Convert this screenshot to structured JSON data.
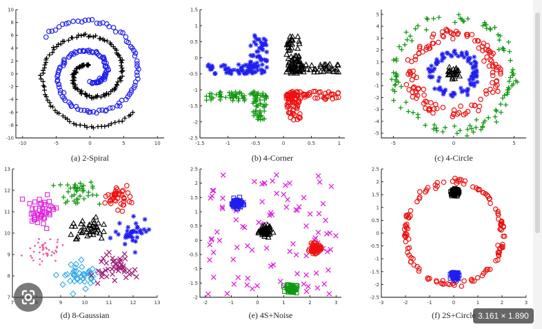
{
  "colors": {
    "black": "#000000",
    "blue": "#1f1ff0",
    "red": "#ee1111",
    "green": "#119911",
    "magenta": "#e020e0",
    "pink": "#f060a0",
    "cyan": "#30a8e8",
    "purple": "#a0207a"
  },
  "overlay": {
    "lens_icon": "google-lens-icon",
    "size_badge": "3.161 × 1.890"
  },
  "chart_data": [
    {
      "id": "spiral",
      "type": "scatter",
      "caption": "(a) 2-Spiral",
      "xlim": [
        -11,
        11
      ],
      "ylim": [
        -10,
        10
      ],
      "xticks": [
        -10,
        -5,
        0,
        5,
        10
      ],
      "yticks": [
        10,
        8,
        6,
        4,
        2,
        0,
        -2,
        -4,
        -6,
        -8,
        -10
      ],
      "series": [
        {
          "marker": "plus",
          "color": "black",
          "gen": "spiral",
          "params": {
            "a0": 0.2,
            "sign": 1,
            "n": 160
          }
        },
        {
          "marker": "circle",
          "color": "blue",
          "gen": "spiral",
          "params": {
            "a0": 0.2,
            "sign": -1,
            "n": 150
          }
        }
      ]
    },
    {
      "id": "corner",
      "type": "scatter",
      "caption": "(b) 4-Corner",
      "xlim": [
        -1.5,
        1.1
      ],
      "ylim": [
        -2.5,
        1.5
      ],
      "xticks": [
        -1.5,
        -1,
        -0.5,
        0,
        0.5,
        1
      ],
      "yticks": [
        1.5,
        1,
        0.5,
        0,
        -0.5,
        -1,
        -1.5,
        -2,
        -2.5
      ],
      "series": [
        {
          "marker": "asterisk",
          "color": "blue",
          "gen": "rects",
          "params": {
            "n": 110,
            "rects": [
              [
                -1.4,
                -0.2,
                -0.45,
                -0.5
              ],
              [
                -0.6,
                0.7,
                -0.3,
                -0.5
              ]
            ]
          }
        },
        {
          "marker": "triangle",
          "color": "black",
          "gen": "rects",
          "params": {
            "n": 110,
            "rects": [
              [
                0.05,
                0.7,
                0.3,
                -0.5
              ],
              [
                0.05,
                -0.2,
                1.0,
                -0.45
              ]
            ]
          }
        },
        {
          "marker": "plus",
          "color": "green",
          "gen": "rects",
          "params": {
            "n": 110,
            "rects": [
              [
                -1.4,
                -1.05,
                -0.45,
                -1.35
              ],
              [
                -0.55,
                -1.05,
                -0.3,
                -1.95
              ]
            ]
          }
        },
        {
          "marker": "circle",
          "color": "red",
          "gen": "rects",
          "params": {
            "n": 110,
            "rects": [
              [
                0.05,
                -1.05,
                0.3,
                -1.95
              ],
              [
                0.05,
                -1.05,
                1.0,
                -1.3
              ]
            ]
          }
        }
      ]
    },
    {
      "id": "circle4",
      "type": "scatter",
      "caption": "(c) 4-Circle",
      "xlim": [
        -6,
        6
      ],
      "ylim": [
        -5.4,
        5.4
      ],
      "xticks": [
        -5,
        0,
        5
      ],
      "yticks": [
        5,
        4,
        3,
        2,
        1,
        0,
        -1,
        -2,
        -3,
        -4,
        -5
      ],
      "series": [
        {
          "marker": "plus",
          "color": "green",
          "gen": "ring",
          "params": {
            "cx": 0,
            "cy": 0,
            "r": 4.8,
            "ry": 4.75,
            "noise": 0.25,
            "n": 110
          }
        },
        {
          "marker": "circle",
          "color": "red",
          "gen": "ring",
          "params": {
            "cx": 0,
            "cy": 0,
            "r": 3.5,
            "ry": 3.3,
            "noise": 0.3,
            "n": 130
          }
        },
        {
          "marker": "asterisk",
          "color": "blue",
          "gen": "ring",
          "params": {
            "cx": 0,
            "cy": 0,
            "r": 1.8,
            "ry": 1.7,
            "noise": 0.2,
            "n": 90
          }
        },
        {
          "marker": "triangle",
          "color": "black",
          "gen": "blob",
          "params": {
            "cx": 0,
            "cy": 0,
            "sx": 0.25,
            "sy": 0.25,
            "n": 25
          }
        }
      ]
    },
    {
      "id": "gauss8",
      "type": "scatter",
      "caption": "(d) 8-Gaussian",
      "xlim": [
        7,
        13
      ],
      "ylim": [
        7,
        13
      ],
      "xticks": [
        7,
        8,
        9,
        10,
        11,
        12,
        13
      ],
      "yticks": [
        13,
        12,
        11,
        10,
        9,
        8,
        7
      ],
      "series": [
        {
          "marker": "plus",
          "color": "green",
          "gen": "blob",
          "params": {
            "cx": 9.7,
            "cy": 11.9,
            "sx": 0.45,
            "sy": 0.25,
            "n": 40
          }
        },
        {
          "marker": "circle",
          "color": "red",
          "gen": "blob",
          "params": {
            "cx": 11.3,
            "cy": 11.7,
            "sx": 0.3,
            "sy": 0.3,
            "n": 40
          }
        },
        {
          "marker": "square",
          "color": "magenta",
          "gen": "blob",
          "params": {
            "cx": 8.2,
            "cy": 11.0,
            "sx": 0.3,
            "sy": 0.35,
            "n": 45
          }
        },
        {
          "marker": "triangle",
          "color": "black",
          "gen": "blob",
          "params": {
            "cx": 10.2,
            "cy": 10.2,
            "sx": 0.35,
            "sy": 0.25,
            "n": 40
          }
        },
        {
          "marker": "asterisk",
          "color": "blue",
          "gen": "blob",
          "params": {
            "cx": 12.0,
            "cy": 10.0,
            "sx": 0.3,
            "sy": 0.3,
            "n": 40
          }
        },
        {
          "marker": "dot",
          "color": "pink",
          "gen": "blob",
          "params": {
            "cx": 8.3,
            "cy": 9.2,
            "sx": 0.35,
            "sy": 0.3,
            "n": 45
          }
        },
        {
          "marker": "diamond",
          "color": "cyan",
          "gen": "blob",
          "params": {
            "cx": 9.8,
            "cy": 8.1,
            "sx": 0.35,
            "sy": 0.25,
            "n": 40
          }
        },
        {
          "marker": "cross",
          "color": "purple",
          "gen": "blob",
          "params": {
            "cx": 11.3,
            "cy": 8.4,
            "sx": 0.35,
            "sy": 0.35,
            "n": 45
          }
        }
      ]
    },
    {
      "id": "s4noise",
      "type": "scatter",
      "caption": "(e) 4S+Noise",
      "xlim": [
        -2.2,
        3.2
      ],
      "ylim": [
        -2.0,
        2.5
      ],
      "xticks": [
        -2,
        -1,
        0,
        1,
        2,
        3
      ],
      "yticks": [
        2.5,
        2,
        1.5,
        1,
        0.5,
        0,
        -0.5,
        -1,
        -1.5,
        -2
      ],
      "series": [
        {
          "marker": "cross",
          "color": "magenta",
          "gen": "uniform",
          "params": {
            "x0": -2.0,
            "x1": 3.0,
            "y0": -1.9,
            "y1": 2.3,
            "n": 95
          }
        },
        {
          "marker": "square",
          "color": "blue",
          "gen": "blob",
          "params": {
            "cx": -0.8,
            "cy": 1.3,
            "sx": 0.1,
            "sy": 0.08,
            "n": 70
          }
        },
        {
          "marker": "triangle",
          "color": "black",
          "gen": "blob",
          "params": {
            "cx": 0.3,
            "cy": 0.3,
            "sx": 0.1,
            "sy": 0.08,
            "n": 70
          }
        },
        {
          "marker": "circle",
          "color": "red",
          "gen": "blob",
          "params": {
            "cx": 2.2,
            "cy": -0.3,
            "sx": 0.1,
            "sy": 0.08,
            "n": 70
          }
        },
        {
          "marker": "square",
          "color": "green",
          "gen": "blob",
          "params": {
            "cx": 1.3,
            "cy": -1.7,
            "sx": 0.1,
            "sy": 0.08,
            "n": 70
          }
        }
      ]
    },
    {
      "id": "s2circle",
      "type": "scatter",
      "caption": "(f) 2S+Circle",
      "xlim": [
        -3,
        3
      ],
      "ylim": [
        -2.5,
        2.5
      ],
      "xticks": [
        -3,
        -2,
        -1,
        0,
        1,
        2,
        3
      ],
      "yticks": [
        2.5,
        2,
        1.5,
        1,
        0.5,
        0,
        -0.5,
        -1,
        -1.5,
        -2,
        -2.5
      ],
      "series": [
        {
          "marker": "circle",
          "color": "red",
          "gen": "ring",
          "params": {
            "cx": 0,
            "cy": 0,
            "r": 2.0,
            "ry": 2.0,
            "noise": 0.05,
            "n": 130
          }
        },
        {
          "marker": "square",
          "color": "black",
          "gen": "blob",
          "params": {
            "cx": 0.05,
            "cy": 1.6,
            "sx": 0.08,
            "sy": 0.06,
            "n": 70
          }
        },
        {
          "marker": "square",
          "color": "blue",
          "gen": "blob",
          "params": {
            "cx": 0.05,
            "cy": -1.65,
            "sx": 0.08,
            "sy": 0.06,
            "n": 70
          }
        }
      ]
    }
  ]
}
